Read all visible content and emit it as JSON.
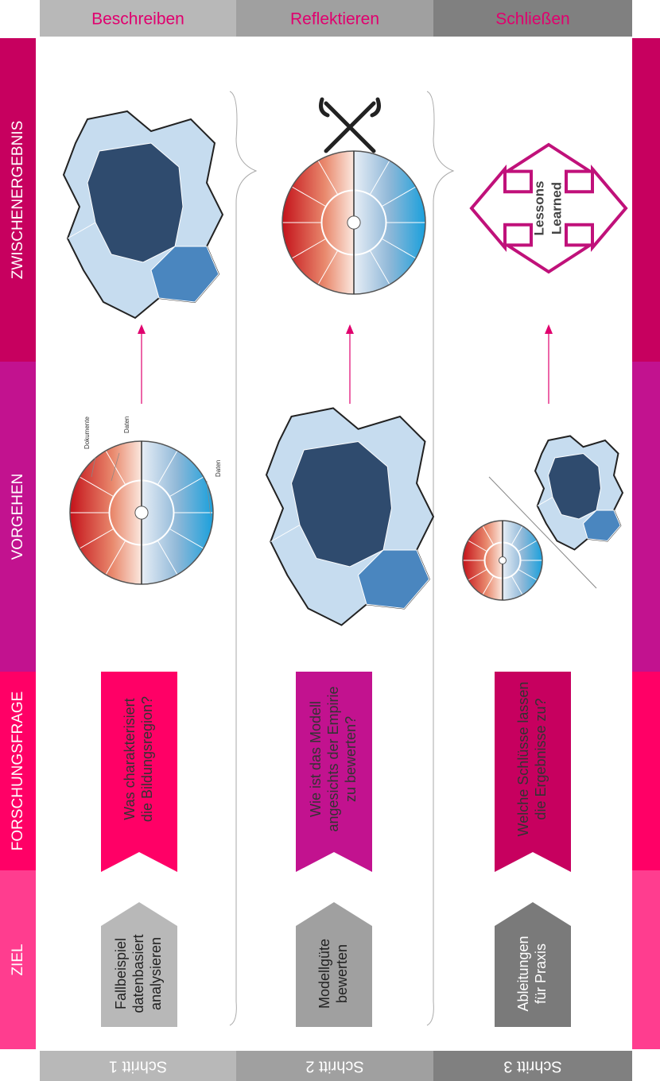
{
  "rows": [
    "ZWISCHENERGEBNIS",
    "VORGEHEN",
    "FORSCHUNGSFRAGE",
    "ZIEL"
  ],
  "columns": [
    {
      "phase": "Beschreiben",
      "step": "Schritt 1",
      "goal": [
        "Fallbeispiel",
        "datenbasiert",
        "analysieren"
      ],
      "question": [
        "Was charakterisiert",
        "die Bildungsregion?"
      ]
    },
    {
      "phase": "Reflektieren",
      "step": "Schritt 2",
      "goal": [
        "Modellgüte",
        "bewerten"
      ],
      "question": [
        "Wie ist das Modell",
        "angesichts der Empirie",
        "zu bewerten?"
      ]
    },
    {
      "phase": "Schließen",
      "step": "Schritt 3",
      "goal": [
        "Ableitungen",
        "für Praxis"
      ],
      "question": [
        "Welche Schlüsse lassen",
        "die Ergebnisse zu?"
      ]
    }
  ],
  "wheel_labels": [
    "Dokumente",
    "Daten",
    "Daten"
  ],
  "lessons": [
    "Lessons",
    "Learned"
  ]
}
